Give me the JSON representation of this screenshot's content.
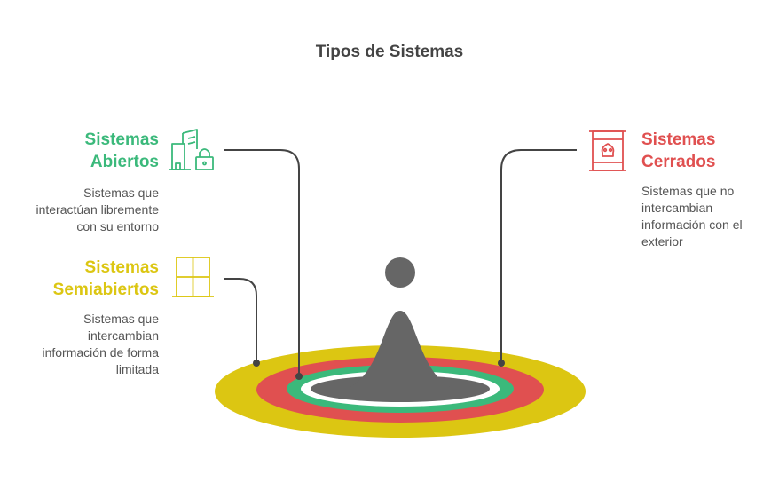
{
  "title": "Tipos de Sistemas",
  "colors": {
    "open": "#3bb97b",
    "semi": "#dcc612",
    "closed": "#e05050",
    "figure": "#666666",
    "connector": "#444444"
  },
  "items": [
    {
      "key": "open",
      "heading_line1": "Sistemas",
      "heading_line2": "Abiertos",
      "desc_lines": [
        "Sistemas que",
        "interactúan libremente",
        "con su entorno"
      ],
      "icon": "buildings-lock-icon"
    },
    {
      "key": "semi",
      "heading_line1": "Sistemas",
      "heading_line2": "Semiabiertos",
      "desc_lines": [
        "Sistemas que",
        "intercambian",
        "información de forma",
        "limitada"
      ],
      "icon": "window-grid-icon"
    },
    {
      "key": "closed",
      "heading_line1": "Sistemas",
      "heading_line2": "Cerrados",
      "desc_lines": [
        "Sistemas que no",
        "intercambian",
        "información con el",
        "exterior"
      ],
      "icon": "sealed-container-skull-icon"
    }
  ]
}
